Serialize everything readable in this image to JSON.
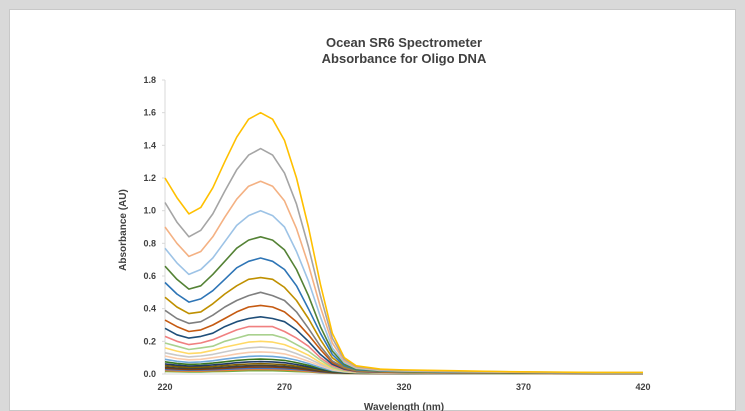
{
  "chart_data": {
    "type": "line",
    "title": "Ocean SR6 Spectrometer",
    "subtitle": "Absorbance for Oligo DNA",
    "xlabel": "Wavelength (nm)",
    "ylabel": "Absorbance (AU)",
    "xlim": [
      220,
      420
    ],
    "ylim": [
      0,
      1.8
    ],
    "x_ticks": [
      "220",
      "270",
      "320",
      "370",
      "420"
    ],
    "y_ticks": [
      "0.0",
      "0.2",
      "0.4",
      "0.6",
      "0.8",
      "1.0",
      "1.2",
      "1.4",
      "1.6",
      "1.8"
    ],
    "x": [
      220,
      225,
      230,
      235,
      240,
      245,
      250,
      255,
      260,
      265,
      270,
      275,
      280,
      285,
      290,
      295,
      300,
      310,
      320,
      340,
      360,
      380,
      400,
      420
    ],
    "series": [
      {
        "color": "#FFC000",
        "values": [
          1.2,
          1.08,
          0.98,
          1.02,
          1.14,
          1.3,
          1.45,
          1.56,
          1.6,
          1.56,
          1.43,
          1.2,
          0.9,
          0.55,
          0.25,
          0.1,
          0.05,
          0.03,
          0.025,
          0.02,
          0.015,
          0.012,
          0.01,
          0.01
        ]
      },
      {
        "color": "#A5A5A5",
        "values": [
          1.05,
          0.93,
          0.84,
          0.88,
          0.98,
          1.12,
          1.25,
          1.34,
          1.38,
          1.34,
          1.23,
          1.04,
          0.78,
          0.48,
          0.22,
          0.09,
          0.045,
          0.028,
          0.022,
          0.018,
          0.014,
          0.011,
          0.009,
          0.009
        ]
      },
      {
        "color": "#F4B183",
        "values": [
          0.9,
          0.8,
          0.72,
          0.75,
          0.84,
          0.96,
          1.07,
          1.15,
          1.18,
          1.15,
          1.06,
          0.89,
          0.67,
          0.41,
          0.19,
          0.08,
          0.04,
          0.025,
          0.02,
          0.016,
          0.012,
          0.01,
          0.008,
          0.008
        ]
      },
      {
        "color": "#9DC3E6",
        "values": [
          0.77,
          0.68,
          0.61,
          0.64,
          0.71,
          0.81,
          0.91,
          0.97,
          1.0,
          0.97,
          0.9,
          0.75,
          0.57,
          0.35,
          0.16,
          0.07,
          0.035,
          0.022,
          0.018,
          0.014,
          0.011,
          0.009,
          0.007,
          0.007
        ]
      },
      {
        "color": "#548235",
        "values": [
          0.66,
          0.58,
          0.52,
          0.54,
          0.61,
          0.69,
          0.77,
          0.82,
          0.84,
          0.82,
          0.76,
          0.64,
          0.48,
          0.29,
          0.14,
          0.06,
          0.03,
          0.02,
          0.016,
          0.012,
          0.01,
          0.008,
          0.006,
          0.006
        ]
      },
      {
        "color": "#2E75B6",
        "values": [
          0.56,
          0.49,
          0.44,
          0.46,
          0.51,
          0.58,
          0.65,
          0.69,
          0.71,
          0.69,
          0.64,
          0.54,
          0.4,
          0.25,
          0.12,
          0.05,
          0.026,
          0.018,
          0.014,
          0.011,
          0.009,
          0.007,
          0.006,
          0.006
        ]
      },
      {
        "color": "#BF9000",
        "values": [
          0.47,
          0.41,
          0.37,
          0.38,
          0.43,
          0.49,
          0.54,
          0.58,
          0.59,
          0.58,
          0.53,
          0.45,
          0.34,
          0.21,
          0.1,
          0.045,
          0.023,
          0.016,
          0.012,
          0.01,
          0.008,
          0.006,
          0.005,
          0.005
        ]
      },
      {
        "color": "#7F7F7F",
        "values": [
          0.39,
          0.34,
          0.31,
          0.32,
          0.36,
          0.41,
          0.45,
          0.48,
          0.5,
          0.48,
          0.45,
          0.38,
          0.28,
          0.17,
          0.08,
          0.04,
          0.02,
          0.014,
          0.011,
          0.009,
          0.007,
          0.006,
          0.005,
          0.005
        ]
      },
      {
        "color": "#C55A11",
        "values": [
          0.33,
          0.29,
          0.26,
          0.27,
          0.3,
          0.34,
          0.38,
          0.41,
          0.42,
          0.41,
          0.38,
          0.32,
          0.24,
          0.15,
          0.07,
          0.035,
          0.018,
          0.012,
          0.01,
          0.008,
          0.006,
          0.005,
          0.004,
          0.004
        ]
      },
      {
        "color": "#1F4E79",
        "values": [
          0.28,
          0.24,
          0.22,
          0.23,
          0.25,
          0.29,
          0.32,
          0.34,
          0.35,
          0.34,
          0.32,
          0.27,
          0.2,
          0.12,
          0.06,
          0.03,
          0.016,
          0.011,
          0.009,
          0.007,
          0.006,
          0.005,
          0.004,
          0.004
        ]
      },
      {
        "color": "#F08080",
        "values": [
          0.23,
          0.2,
          0.18,
          0.19,
          0.21,
          0.24,
          0.27,
          0.29,
          0.29,
          0.29,
          0.26,
          0.22,
          0.17,
          0.1,
          0.05,
          0.025,
          0.014,
          0.01,
          0.008,
          0.006,
          0.005,
          0.004,
          0.004,
          0.004
        ]
      },
      {
        "color": "#A9D18E",
        "values": [
          0.19,
          0.17,
          0.15,
          0.16,
          0.17,
          0.2,
          0.22,
          0.24,
          0.24,
          0.24,
          0.22,
          0.18,
          0.14,
          0.085,
          0.04,
          0.02,
          0.012,
          0.009,
          0.007,
          0.006,
          0.005,
          0.004,
          0.003,
          0.003
        ]
      },
      {
        "color": "#FFD966",
        "values": [
          0.16,
          0.14,
          0.125,
          0.13,
          0.145,
          0.165,
          0.18,
          0.195,
          0.2,
          0.195,
          0.18,
          0.15,
          0.115,
          0.07,
          0.035,
          0.018,
          0.011,
          0.008,
          0.006,
          0.005,
          0.004,
          0.004,
          0.003,
          0.003
        ]
      },
      {
        "color": "#C9C9C9",
        "values": [
          0.13,
          0.115,
          0.105,
          0.11,
          0.12,
          0.135,
          0.15,
          0.16,
          0.165,
          0.16,
          0.15,
          0.125,
          0.095,
          0.06,
          0.03,
          0.016,
          0.01,
          0.007,
          0.006,
          0.005,
          0.004,
          0.003,
          0.003,
          0.003
        ]
      },
      {
        "color": "#F8CBAD",
        "values": [
          0.11,
          0.095,
          0.087,
          0.09,
          0.1,
          0.11,
          0.123,
          0.132,
          0.135,
          0.132,
          0.123,
          0.103,
          0.078,
          0.05,
          0.025,
          0.014,
          0.009,
          0.007,
          0.005,
          0.004,
          0.004,
          0.003,
          0.003,
          0.003
        ]
      },
      {
        "color": "#6FA8DC",
        "values": [
          0.09,
          0.078,
          0.071,
          0.074,
          0.081,
          0.091,
          0.1,
          0.108,
          0.11,
          0.108,
          0.1,
          0.085,
          0.064,
          0.04,
          0.021,
          0.012,
          0.008,
          0.006,
          0.005,
          0.004,
          0.003,
          0.003,
          0.003,
          0.003
        ]
      },
      {
        "color": "#38761D",
        "values": [
          0.075,
          0.065,
          0.059,
          0.061,
          0.067,
          0.075,
          0.083,
          0.089,
          0.091,
          0.089,
          0.083,
          0.07,
          0.053,
          0.034,
          0.018,
          0.011,
          0.007,
          0.005,
          0.004,
          0.004,
          0.003,
          0.003,
          0.002,
          0.002
        ]
      },
      {
        "color": "#1F3864",
        "values": [
          0.062,
          0.054,
          0.049,
          0.051,
          0.056,
          0.062,
          0.069,
          0.074,
          0.076,
          0.074,
          0.069,
          0.058,
          0.044,
          0.028,
          0.015,
          0.009,
          0.006,
          0.005,
          0.004,
          0.003,
          0.003,
          0.002,
          0.002,
          0.002
        ]
      },
      {
        "color": "#806000",
        "values": [
          0.052,
          0.045,
          0.041,
          0.042,
          0.046,
          0.052,
          0.057,
          0.061,
          0.063,
          0.061,
          0.057,
          0.048,
          0.037,
          0.023,
          0.013,
          0.008,
          0.005,
          0.004,
          0.003,
          0.003,
          0.002,
          0.002,
          0.002,
          0.002
        ]
      },
      {
        "color": "#404040",
        "values": [
          0.043,
          0.037,
          0.034,
          0.035,
          0.038,
          0.043,
          0.047,
          0.051,
          0.052,
          0.051,
          0.047,
          0.04,
          0.03,
          0.019,
          0.011,
          0.007,
          0.005,
          0.004,
          0.003,
          0.003,
          0.002,
          0.002,
          0.002,
          0.002
        ]
      },
      {
        "color": "#843C0C",
        "values": [
          0.035,
          0.031,
          0.028,
          0.029,
          0.032,
          0.035,
          0.039,
          0.042,
          0.043,
          0.042,
          0.039,
          0.033,
          0.025,
          0.016,
          0.009,
          0.006,
          0.004,
          0.003,
          0.003,
          0.002,
          0.002,
          0.002,
          0.002,
          0.002
        ]
      },
      {
        "color": "#4472C4",
        "values": [
          0.028,
          0.025,
          0.023,
          0.024,
          0.026,
          0.029,
          0.032,
          0.034,
          0.035,
          0.034,
          0.032,
          0.027,
          0.021,
          0.013,
          0.008,
          0.005,
          0.004,
          0.003,
          0.002,
          0.002,
          0.002,
          0.002,
          0.001,
          0.001
        ]
      },
      {
        "color": "#ED7D31",
        "values": [
          0.022,
          0.019,
          0.018,
          0.018,
          0.02,
          0.022,
          0.025,
          0.027,
          0.028,
          0.027,
          0.025,
          0.021,
          0.016,
          0.01,
          0.006,
          0.004,
          0.003,
          0.003,
          0.002,
          0.002,
          0.002,
          0.001,
          0.001,
          0.001
        ]
      },
      {
        "color": "#70AD47",
        "values": [
          0.016,
          0.014,
          0.013,
          0.013,
          0.015,
          0.016,
          0.018,
          0.02,
          0.02,
          0.02,
          0.018,
          0.015,
          0.012,
          0.008,
          0.005,
          0.003,
          0.003,
          0.002,
          0.002,
          0.002,
          0.001,
          0.001,
          0.001,
          0.001
        ]
      }
    ]
  }
}
